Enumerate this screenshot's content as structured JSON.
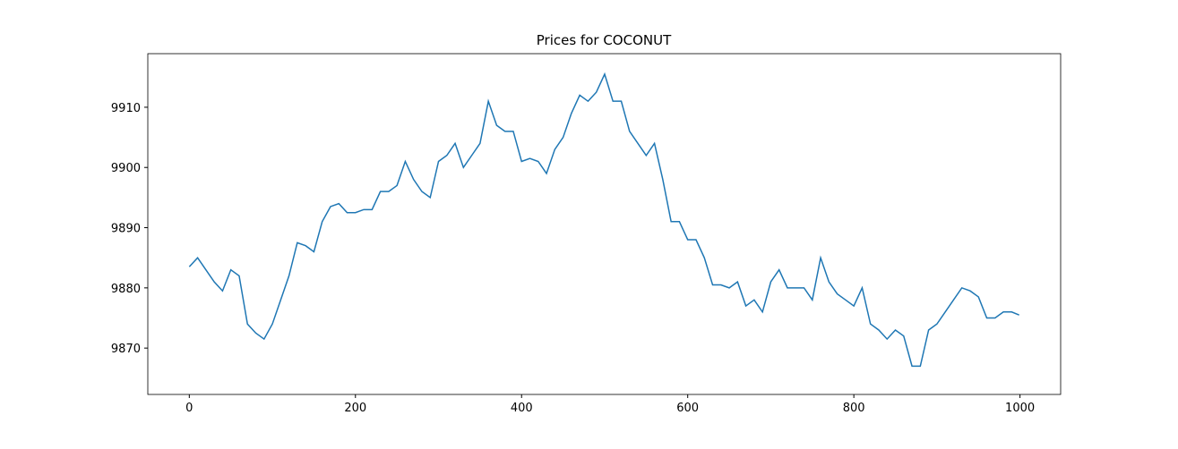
{
  "chart_data": {
    "type": "line",
    "title": "Prices for COCONUT",
    "x": [
      0,
      10,
      20,
      30,
      40,
      50,
      60,
      70,
      80,
      90,
      100,
      110,
      120,
      130,
      140,
      150,
      160,
      170,
      180,
      190,
      200,
      210,
      220,
      230,
      240,
      250,
      260,
      270,
      280,
      290,
      300,
      310,
      320,
      330,
      340,
      350,
      360,
      370,
      380,
      390,
      400,
      410,
      420,
      430,
      440,
      450,
      460,
      470,
      480,
      490,
      500,
      510,
      520,
      530,
      540,
      550,
      560,
      570,
      580,
      590,
      600,
      610,
      620,
      630,
      640,
      650,
      660,
      670,
      680,
      690,
      700,
      710,
      720,
      730,
      740,
      750,
      760,
      770,
      780,
      790,
      800,
      810,
      820,
      830,
      840,
      850,
      860,
      870,
      880,
      890,
      900,
      910,
      920,
      930,
      940,
      950,
      960,
      970,
      980,
      990,
      999
    ],
    "series": [
      {
        "name": "COCONUT",
        "color": "#1f77b4",
        "values": [
          9883.5,
          9885,
          9883,
          9881,
          9879.5,
          9883,
          9882,
          9874,
          9872.5,
          9871.5,
          9874,
          9878,
          9882,
          9887.5,
          9887,
          9886,
          9891,
          9893.5,
          9894,
          9892.5,
          9892.5,
          9893,
          9893,
          9896,
          9896,
          9897,
          9901,
          9898,
          9896,
          9895,
          9901,
          9902,
          9904,
          9900,
          9902,
          9904,
          9911,
          9907,
          9906,
          9906,
          9901,
          9901.5,
          9901,
          9899,
          9903,
          9905,
          9909,
          9912,
          9911,
          9912.5,
          9915.5,
          9911,
          9911,
          9906,
          9904,
          9902,
          9904,
          9898,
          9891,
          9891,
          9888,
          9888,
          9885,
          9880.5,
          9880.5,
          9880,
          9881,
          9877,
          9878,
          9876,
          9881,
          9883,
          9880,
          9880,
          9880,
          9878,
          9885,
          9881,
          9879,
          9878,
          9877,
          9880,
          9874,
          9873,
          9871.5,
          9873,
          9872,
          9867,
          9867,
          9873,
          9874,
          9876,
          9878,
          9880,
          9879.5,
          9878.5,
          9875,
          9875,
          9876,
          9876,
          9875.5
        ]
      }
    ],
    "xlim": [
      -49.95,
      1048.95
    ],
    "ylim": [
      9862.3,
      9918.9
    ],
    "xticks": [
      0,
      200,
      400,
      600,
      800,
      1000
    ],
    "yticks": [
      9870,
      9880,
      9890,
      9900,
      9910
    ]
  }
}
